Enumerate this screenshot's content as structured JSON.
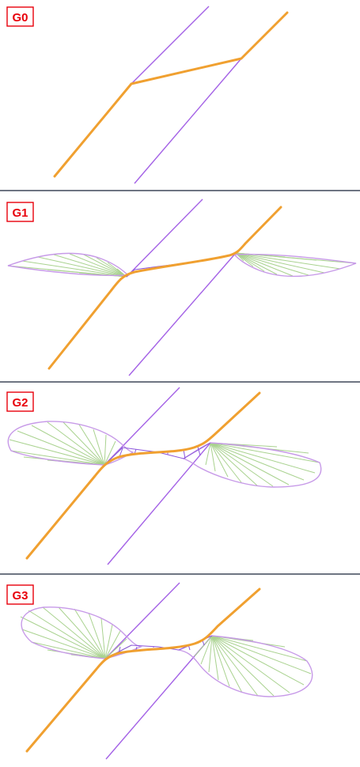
{
  "panels": [
    {
      "label": "G0"
    },
    {
      "label": "G1"
    },
    {
      "label": "G2"
    },
    {
      "label": "G3"
    }
  ],
  "colors": {
    "curve": "#f0a030",
    "guide_lines": "#a462e6",
    "comb_teeth": "#a9d28f",
    "comb_envelope": "#c79ae8",
    "label": "#e8000b",
    "divider": "#6e7582"
  }
}
